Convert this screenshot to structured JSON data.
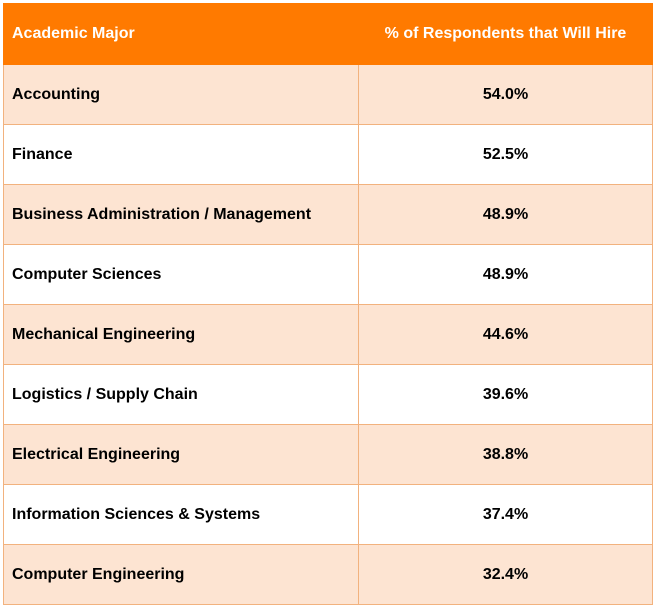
{
  "table": {
    "headers": {
      "major": "Academic Major",
      "pct": "% of Respondents that Will Hire"
    },
    "rows": [
      {
        "major": "Accounting",
        "pct": "54.0%"
      },
      {
        "major": "Finance",
        "pct": "52.5%"
      },
      {
        "major": "Business Administration / Management",
        "pct": "48.9%"
      },
      {
        "major": "Computer Sciences",
        "pct": "48.9%"
      },
      {
        "major": "Mechanical Engineering",
        "pct": "44.6%"
      },
      {
        "major": "Logistics / Supply Chain",
        "pct": "39.6%"
      },
      {
        "major": "Electrical Engineering",
        "pct": "38.8%"
      },
      {
        "major": "Information Sciences & Systems",
        "pct": "37.4%"
      },
      {
        "major": "Computer Engineering",
        "pct": "32.4%"
      }
    ]
  },
  "chart_data": {
    "type": "table",
    "columns": [
      "Academic Major",
      "% of Respondents that Will Hire"
    ],
    "categories": [
      "Accounting",
      "Finance",
      "Business Administration / Management",
      "Computer Sciences",
      "Mechanical Engineering",
      "Logistics / Supply Chain",
      "Electrical Engineering",
      "Information Sciences & Systems",
      "Computer Engineering"
    ],
    "values": [
      54.0,
      52.5,
      48.9,
      48.9,
      44.6,
      39.6,
      38.8,
      37.4,
      32.4
    ]
  },
  "colors": {
    "header_bg": "#ff7a00",
    "header_text": "#ffffff",
    "row_alt_bg": "#fde4d2",
    "row_bg": "#ffffff",
    "border": "#f2b27e"
  }
}
